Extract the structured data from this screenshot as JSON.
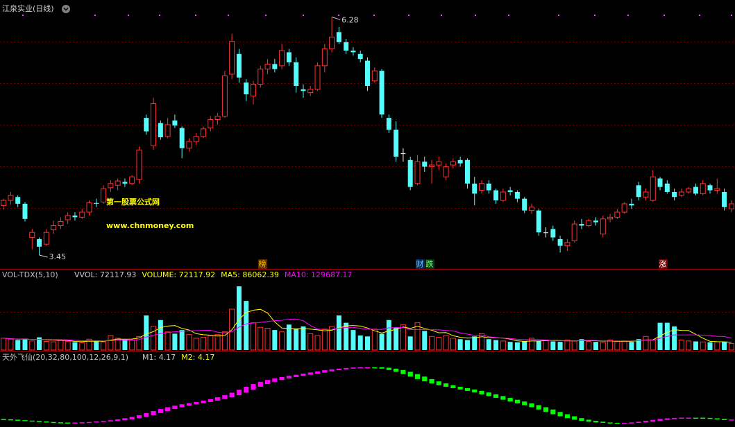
{
  "chart_data": [
    {
      "type": "candlestick",
      "title": "江泉实业(日线)",
      "open": [
        4.04,
        4.1,
        4.14,
        4.06,
        3.66,
        3.64,
        3.58,
        3.75,
        3.8,
        3.87,
        3.92,
        3.9,
        3.96,
        4.07,
        4.08,
        4.25,
        4.28,
        4.32,
        4.3,
        4.35,
        5.08,
        4.75,
        5.02,
        4.86,
        5.05,
        4.96,
        4.72,
        4.8,
        4.86,
        4.96,
        5.06,
        5.1,
        5.6,
        5.84,
        5.5,
        5.34,
        5.48,
        5.66,
        5.72,
        5.7,
        5.86,
        5.74,
        5.42,
        5.38,
        5.42,
        5.7,
        5.9,
        6.1,
        5.98,
        5.88,
        5.84,
        5.76,
        5.52,
        5.64,
        5.08,
        4.94,
        4.66,
        4.58,
        4.3,
        4.56,
        4.5,
        4.52,
        4.38,
        4.52,
        4.58,
        4.58,
        4.3,
        4.22,
        4.3,
        4.22,
        4.1,
        4.22,
        4.2,
        4.12,
        3.98,
        3.98,
        3.72,
        3.76,
        3.64,
        3.56,
        3.62,
        3.82,
        3.8,
        3.86,
        3.7,
        3.88,
        3.9,
        3.96,
        4.06,
        4.28,
        4.14,
        4.1,
        4.36,
        4.3,
        4.2,
        4.16,
        4.2,
        4.26,
        4.18,
        4.28,
        4.22,
        4.2,
        4.0
      ],
      "high": [
        4.12,
        4.2,
        4.16,
        4.08,
        3.76,
        3.66,
        3.76,
        3.86,
        3.9,
        3.96,
        3.96,
        4.0,
        4.1,
        4.12,
        4.28,
        4.34,
        4.36,
        4.36,
        4.4,
        4.74,
        5.12,
        5.32,
        5.05,
        5.08,
        5.12,
        4.98,
        4.84,
        4.9,
        4.98,
        5.1,
        5.14,
        5.64,
        6.08,
        5.9,
        5.54,
        5.52,
        5.7,
        5.78,
        5.78,
        5.96,
        5.9,
        5.8,
        5.48,
        5.46,
        5.74,
        5.96,
        6.28,
        6.16,
        6.02,
        5.92,
        5.88,
        5.8,
        5.68,
        5.66,
        5.12,
        5.04,
        4.72,
        4.62,
        4.64,
        4.62,
        4.58,
        4.62,
        4.54,
        4.6,
        4.62,
        4.6,
        4.38,
        4.34,
        4.34,
        4.24,
        4.24,
        4.26,
        4.22,
        4.14,
        4.06,
        4.0,
        3.78,
        3.8,
        3.68,
        3.64,
        3.86,
        3.88,
        3.88,
        3.9,
        3.92,
        3.94,
        4.0,
        4.08,
        4.12,
        4.32,
        4.24,
        4.46,
        4.38,
        4.34,
        4.24,
        4.24,
        4.26,
        4.3,
        4.34,
        4.3,
        4.36,
        4.24,
        4.1
      ],
      "low": [
        3.99,
        4.05,
        4.02,
        3.85,
        3.52,
        3.45,
        3.56,
        3.7,
        3.76,
        3.82,
        3.86,
        3.88,
        3.92,
        4.02,
        4.06,
        4.2,
        4.22,
        4.26,
        4.28,
        4.3,
        4.88,
        4.7,
        4.82,
        4.84,
        4.96,
        4.6,
        4.68,
        4.76,
        4.84,
        4.92,
        5.0,
        5.08,
        5.54,
        5.5,
        5.28,
        5.24,
        5.44,
        5.6,
        5.62,
        5.66,
        5.7,
        5.38,
        5.32,
        5.34,
        5.4,
        5.62,
        5.86,
        5.96,
        5.84,
        5.82,
        5.74,
        5.4,
        5.5,
        5.08,
        4.9,
        4.56,
        4.56,
        4.22,
        4.28,
        4.44,
        4.3,
        4.46,
        4.34,
        4.48,
        4.5,
        4.24,
        4.04,
        4.18,
        4.18,
        4.06,
        4.08,
        4.16,
        4.08,
        3.95,
        3.94,
        3.68,
        3.66,
        3.62,
        3.48,
        3.5,
        3.6,
        3.76,
        3.78,
        3.8,
        3.66,
        3.84,
        3.88,
        3.94,
        4.0,
        4.1,
        4.1,
        4.08,
        4.22,
        4.18,
        4.1,
        4.14,
        4.18,
        4.16,
        4.16,
        4.18,
        4.18,
        3.98,
        3.96
      ],
      "close": [
        4.1,
        4.16,
        4.06,
        3.88,
        3.72,
        3.55,
        3.72,
        3.8,
        3.85,
        3.92,
        3.9,
        3.96,
        4.07,
        4.06,
        4.24,
        4.3,
        4.33,
        4.3,
        4.38,
        4.7,
        4.92,
        5.25,
        4.85,
        5.0,
        4.99,
        4.72,
        4.8,
        4.86,
        4.95,
        5.06,
        5.1,
        5.58,
        5.99,
        5.56,
        5.36,
        5.48,
        5.66,
        5.72,
        5.66,
        5.88,
        5.74,
        5.46,
        5.4,
        5.42,
        5.7,
        5.9,
        6.04,
        5.98,
        5.88,
        5.86,
        5.78,
        5.46,
        5.64,
        5.12,
        4.94,
        4.62,
        4.66,
        4.26,
        4.56,
        4.5,
        4.52,
        4.56,
        4.5,
        4.56,
        4.54,
        4.3,
        4.18,
        4.3,
        4.22,
        4.1,
        4.2,
        4.2,
        4.12,
        3.98,
        4.02,
        3.72,
        3.72,
        3.66,
        3.56,
        3.6,
        3.82,
        3.8,
        3.86,
        3.84,
        3.88,
        3.9,
        3.96,
        4.06,
        4.04,
        4.14,
        4.2,
        4.38,
        4.26,
        4.2,
        4.14,
        4.2,
        4.24,
        4.18,
        4.3,
        4.22,
        4.24,
        4.02,
        4.06
      ],
      "ylim": [
        3.31,
        6.44
      ],
      "up_color": "#ff3232",
      "down_color": "#54fcfc",
      "max_label": "6.28",
      "min_label": "3.45",
      "watermark": [
        "第一股票公式网",
        "www.chnmoney.com"
      ],
      "events": [
        "榜",
        "财",
        "跌",
        "涨"
      ]
    },
    {
      "type": "bar",
      "title": "VOL-TDX(5,10)",
      "legend": [
        {
          "label": "VVOL: 72117.93",
          "color": "#d0d0d0"
        },
        {
          "label": "VOLUME: 72117.92",
          "color": "#ffff00"
        },
        {
          "label": "MA5: 86062.39",
          "color": "#ffff00"
        },
        {
          "label": "MA10: 129687.17",
          "color": "#ff00ff"
        }
      ],
      "ylim": [
        0,
        800000
      ],
      "series": [
        {
          "values": [
            130000,
            120000,
            110000,
            125000,
            100000,
            140000,
            95000,
            90000,
            110000,
            95000,
            85000,
            80000,
            120000,
            105000,
            90000,
            160000,
            130000,
            115000,
            110000,
            150000,
            380000,
            260000,
            330000,
            200000,
            180000,
            220000,
            170000,
            130000,
            140000,
            160000,
            170000,
            200000,
            450000,
            700000,
            540000,
            300000,
            250000,
            240000,
            220000,
            200000,
            280000,
            230000,
            260000,
            180000,
            160000,
            230000,
            260000,
            380000,
            300000,
            220000,
            160000,
            150000,
            230000,
            180000,
            330000,
            250000,
            280000,
            150000,
            300000,
            210000,
            150000,
            140000,
            160000,
            130000,
            120000,
            110000,
            150000,
            180000,
            120000,
            110000,
            100000,
            90000,
            85000,
            95000,
            130000,
            100000,
            110000,
            95000,
            90000,
            110000,
            100000,
            120000,
            95000,
            90000,
            85000,
            110000,
            95000,
            100000,
            90000,
            120000,
            150000,
            110000,
            300000,
            300000,
            260000,
            110000,
            100000,
            95000,
            90000,
            85000,
            90000,
            93000,
            72117.92
          ]
        },
        {
          "color": "#ffff00",
          "values": [
            130000,
            125000,
            120000,
            121000,
            117000,
            119000,
            113000,
            110000,
            107000,
            106000,
            95000,
            92000,
            98000,
            97000,
            96000,
            108000,
            121000,
            120000,
            121000,
            133000,
            177000,
            203000,
            246000,
            264000,
            270000,
            238000,
            220000,
            180000,
            168000,
            164000,
            154000,
            160000,
            224000,
            336000,
            412000,
            438000,
            448000,
            406000,
            310000,
            242000,
            238000,
            234000,
            238000,
            230000,
            222000,
            212000,
            218000,
            242000,
            266000,
            270000,
            264000,
            242000,
            212000,
            188000,
            210000,
            228000,
            254000,
            238000,
            262000,
            238000,
            218000,
            190000,
            192000,
            158000,
            140000,
            132000,
            134000,
            146000,
            136000,
            134000,
            132000,
            120000,
            101000,
            96000,
            100000,
            100000,
            104000,
            106000,
            105000,
            101000,
            101000,
            103000,
            103000,
            103000,
            98000,
            100000,
            95000,
            96000,
            96000,
            103000,
            111000,
            113000,
            154000,
            196000,
            224000,
            216000,
            214000,
            173000,
            131000,
            96000,
            92000,
            91000,
            86062.39
          ]
        },
        {
          "color": "#ff00ff",
          "values": [
            130000,
            125000,
            120000,
            121000,
            117000,
            118000,
            116000,
            114000,
            114000,
            112000,
            107000,
            103000,
            104000,
            102000,
            101000,
            103000,
            107000,
            110000,
            110000,
            115000,
            143000,
            161000,
            183000,
            192000,
            201000,
            207000,
            211000,
            213000,
            216000,
            217000,
            196000,
            190000,
            202000,
            252000,
            288000,
            296000,
            304000,
            315000,
            323000,
            327000,
            338000,
            341000,
            322000,
            270000,
            232000,
            225000,
            226000,
            240000,
            248000,
            250000,
            238000,
            230000,
            227000,
            227000,
            244000,
            246000,
            248000,
            225000,
            225000,
            224000,
            224000,
            222000,
            215000,
            210000,
            189000,
            175000,
            162000,
            165000,
            147000,
            137000,
            132000,
            127000,
            119000,
            115000,
            116000,
            115000,
            111000,
            102000,
            102000,
            102000,
            102000,
            105000,
            106000,
            106000,
            101000,
            102000,
            100000,
            101000,
            101000,
            104000,
            109000,
            108000,
            129000,
            150000,
            167000,
            166000,
            167000,
            167000,
            164000,
            160000,
            151000,
            149000,
            129687.17
          ]
        }
      ]
    },
    {
      "type": "band",
      "title": "天外飞仙(20,32,80,100,12,26,9,1)",
      "legend": [
        {
          "label": "M1: 4.17",
          "color": "#d0d0d0"
        },
        {
          "label": "M2: 4.17",
          "color": "#ffff00"
        }
      ],
      "ylim": [
        0,
        55
      ],
      "up_color": "#ff00ff",
      "down_color": "#00ff00",
      "series": [
        {
          "values": [
            4.0,
            3.6,
            3.2,
            2.8,
            2.4,
            2.0,
            1.7,
            1.5,
            1.4,
            1.4,
            1.5,
            1.7,
            2.0,
            2.4,
            2.9,
            3.5,
            4.3,
            5.3,
            6.5,
            8.0,
            9.8,
            11.6,
            13.4,
            15.0,
            16.4,
            17.6,
            18.6,
            19.6,
            20.8,
            22.2,
            23.8,
            25.6,
            27.8,
            30.4,
            33.0,
            35.4,
            37.4,
            39.0,
            40.4,
            41.6,
            42.6,
            43.6,
            44.6,
            45.6,
            46.6,
            47.6,
            48.4,
            49.0,
            49.6,
            50.0,
            50.2,
            50.2,
            49.8,
            49.0,
            47.8,
            46.2,
            44.2,
            42.0,
            39.8,
            37.8,
            36.0,
            34.4,
            33.0,
            31.8,
            30.6,
            29.4,
            28.0,
            26.4,
            24.8,
            23.2,
            21.6,
            20.0,
            18.4,
            16.8,
            15.0,
            13.0,
            10.8,
            8.8,
            7.0,
            5.4,
            4.0,
            3.0,
            2.2,
            1.6,
            1.2,
            1.0,
            1.0,
            1.2,
            1.6,
            2.2,
            3.0,
            3.8,
            4.6,
            5.2,
            5.6,
            5.8,
            5.8,
            5.6,
            5.2,
            4.8,
            4.5,
            4.3,
            4.17
          ]
        },
        {
          "values": [
            4.6,
            4.3,
            4.0,
            3.6,
            3.2,
            2.8,
            2.4,
            2.0,
            1.7,
            1.5,
            1.4,
            1.4,
            1.5,
            1.7,
            2.0,
            2.4,
            2.9,
            3.5,
            4.3,
            5.3,
            6.5,
            8.0,
            9.8,
            11.6,
            13.4,
            15.0,
            16.4,
            17.6,
            18.6,
            19.6,
            20.8,
            22.2,
            23.8,
            25.6,
            27.8,
            30.4,
            33.0,
            35.4,
            37.4,
            39.0,
            40.4,
            41.6,
            42.6,
            43.6,
            44.6,
            45.6,
            46.6,
            47.6,
            48.4,
            49.0,
            49.6,
            50.0,
            50.2,
            50.2,
            49.8,
            49.0,
            47.8,
            46.2,
            44.2,
            42.0,
            39.8,
            37.8,
            36.0,
            34.4,
            33.0,
            31.8,
            30.6,
            29.4,
            28.0,
            26.4,
            24.8,
            23.2,
            21.6,
            20.0,
            18.4,
            16.8,
            15.0,
            13.0,
            10.8,
            8.8,
            7.0,
            5.4,
            4.0,
            3.0,
            2.2,
            1.6,
            1.2,
            1.0,
            1.0,
            1.2,
            1.6,
            2.2,
            3.0,
            3.8,
            4.6,
            5.2,
            5.6,
            5.8,
            5.8,
            5.6,
            5.2,
            4.6,
            4.17
          ]
        }
      ]
    }
  ]
}
